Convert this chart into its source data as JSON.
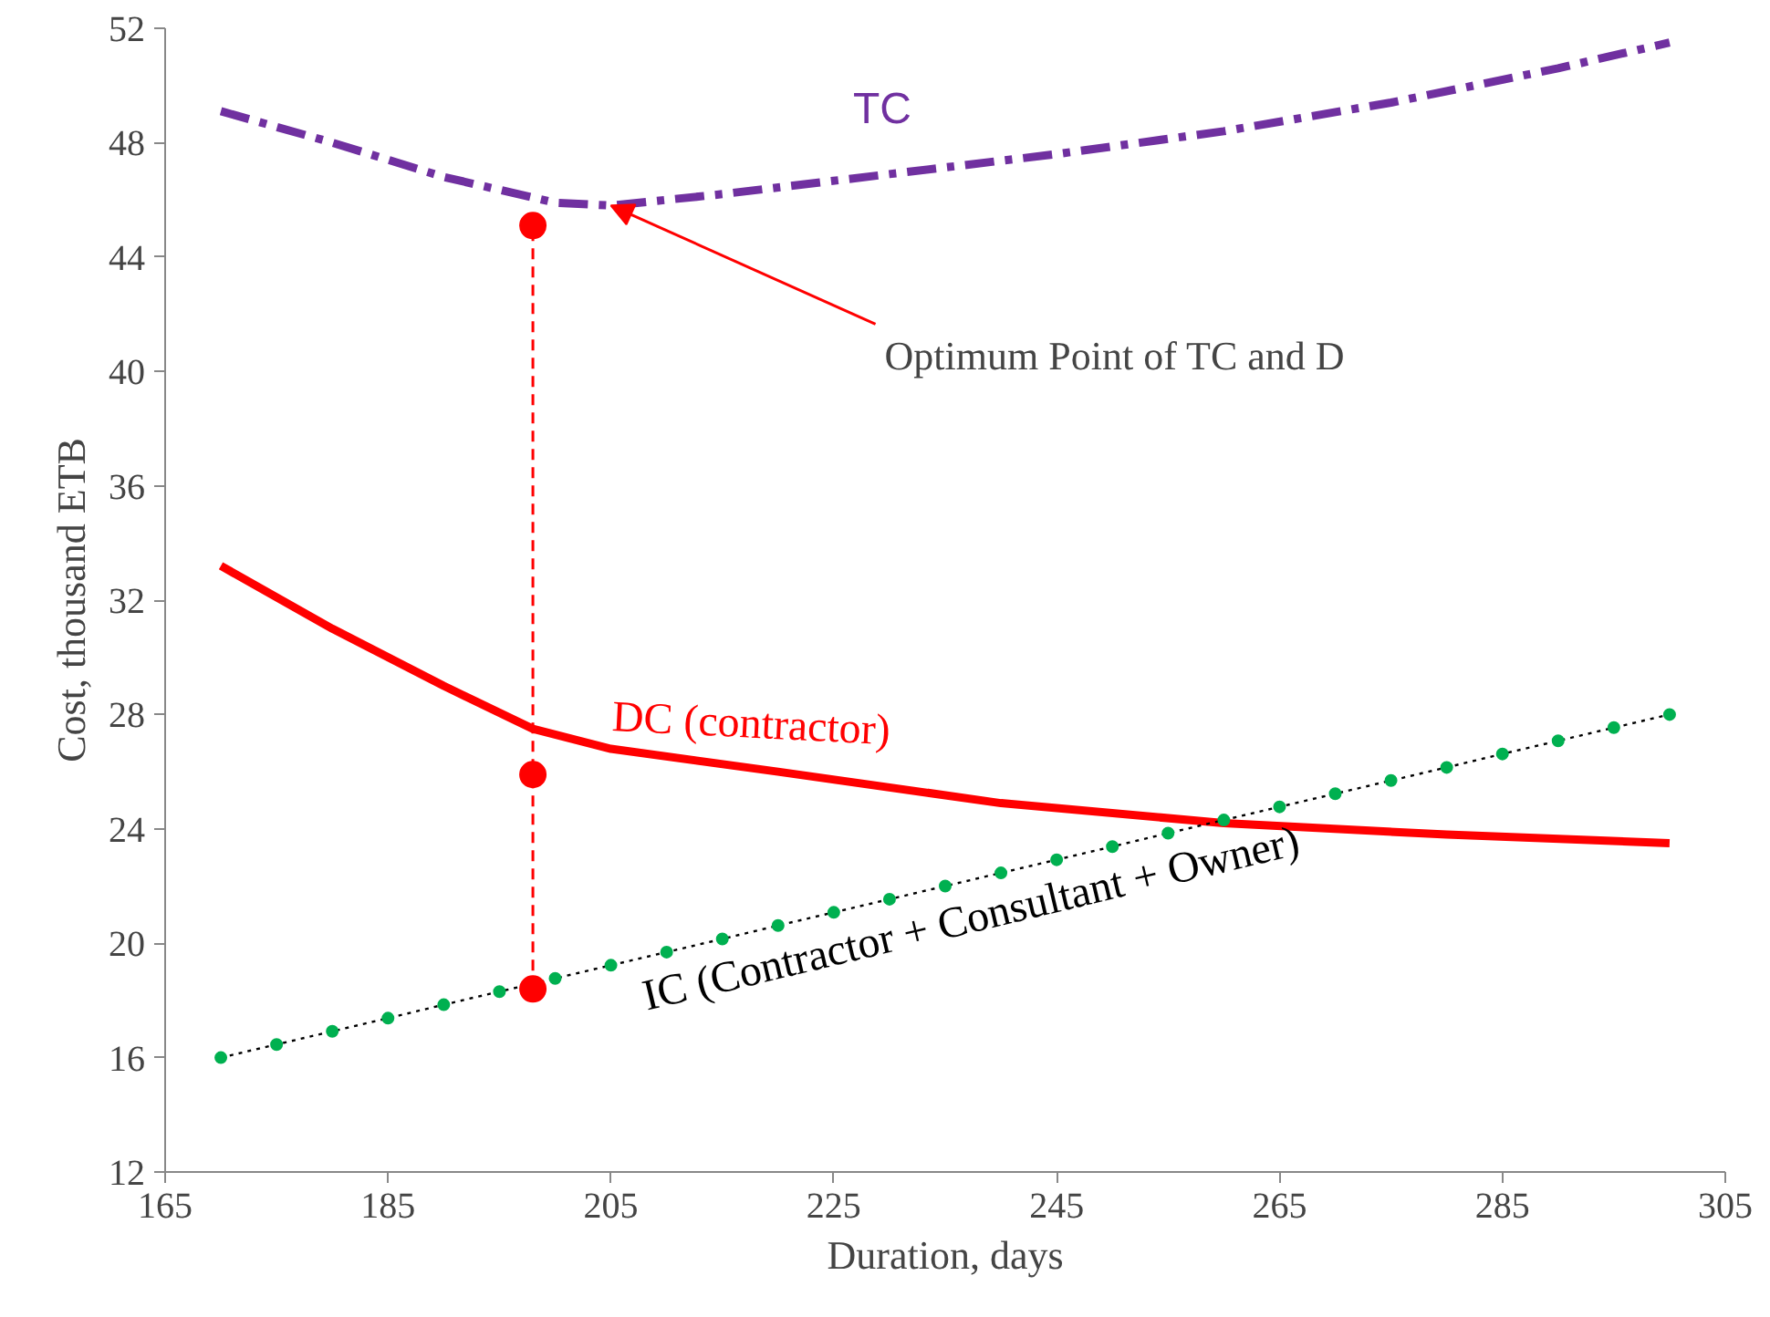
{
  "chart_data": {
    "type": "line",
    "xlabel": "Duration, days",
    "ylabel": "Cost, thousand ETB",
    "xlim": [
      165,
      305
    ],
    "xticks": [
      165,
      185,
      205,
      225,
      245,
      265,
      285,
      305
    ],
    "ylim": [
      12,
      52
    ],
    "yticks": [
      12,
      16,
      20,
      24,
      28,
      32,
      36,
      40,
      44,
      48,
      52
    ],
    "grid": false,
    "series": [
      {
        "name": "TC",
        "color": "#7030a0",
        "line_style": "dashed",
        "marker": "none",
        "x": [
          170,
          180,
          190,
          200,
          205,
          215,
          230,
          245,
          260,
          275,
          290,
          300
        ],
        "values": [
          49.1,
          48.0,
          46.8,
          45.9,
          45.8,
          46.2,
          46.9,
          47.6,
          48.4,
          49.4,
          50.6,
          51.5
        ]
      },
      {
        "name": "DC (contractor)",
        "color": "#ff0000",
        "line_style": "solid",
        "marker": "none",
        "x": [
          170,
          180,
          190,
          198,
          205,
          220,
          240,
          260,
          280,
          300
        ],
        "values": [
          33.2,
          31.0,
          29.0,
          27.5,
          26.8,
          26.0,
          24.9,
          24.2,
          23.8,
          23.5
        ]
      },
      {
        "name": "IC (Contractor + Consultant + Owner)",
        "color": "#00b050",
        "line_style": "dotted",
        "marker": "circle",
        "x": [
          170,
          175,
          180,
          185,
          190,
          195,
          200,
          205,
          210,
          215,
          220,
          225,
          230,
          235,
          240,
          245,
          250,
          255,
          260,
          265,
          270,
          275,
          280,
          285,
          290,
          295,
          300
        ],
        "values": [
          16.0,
          16.46,
          16.92,
          17.38,
          17.85,
          18.31,
          18.77,
          19.23,
          19.69,
          20.15,
          20.62,
          21.08,
          21.54,
          22.0,
          22.46,
          22.92,
          23.38,
          23.85,
          24.31,
          24.77,
          25.23,
          25.69,
          26.15,
          26.62,
          27.08,
          27.54,
          28.0
        ]
      },
      {
        "type": "line",
        "color": "#ff0000",
        "line_style": "dashed",
        "marker": "none",
        "x": [
          198,
          198
        ],
        "values": [
          18.4,
          45.1
        ]
      },
      {
        "type": "scatter",
        "color": "#ff0000",
        "marker": "circle",
        "x": [
          198,
          198,
          198
        ],
        "values": [
          45.1,
          25.9,
          18.4
        ]
      }
    ],
    "annotations": [
      {
        "text": "Optimum Point of TC and D",
        "x": 205,
        "y": 45.8
      }
    ]
  }
}
